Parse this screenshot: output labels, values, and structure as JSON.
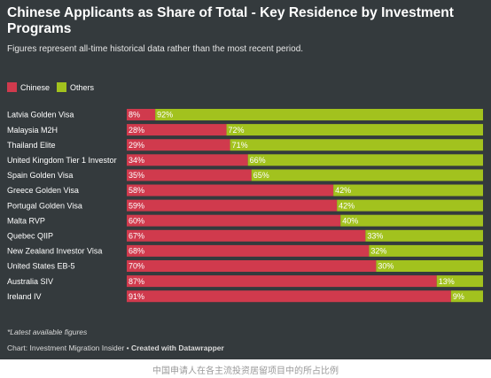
{
  "header": {
    "title": "Chinese Applicants as Share of Total - Key Residence by Investment Programs",
    "subtitle": "Figures represent all-time historical data rather than the most recent period."
  },
  "colors": {
    "chinese": "#d03a4d",
    "others": "#a2c21e",
    "background": "#343a3d"
  },
  "chart_data": {
    "type": "bar",
    "orientation": "horizontal",
    "stacked": true,
    "categories": [
      "Latvia Golden Visa",
      "Malaysia M2H",
      "Thailand Elite",
      "United Kingdom Tier 1 Investor",
      "Spain Golden Visa",
      "Greece Golden Visa",
      "Portugal Golden Visa",
      "Malta RVP",
      "Quebec QIIP",
      "New Zealand Investor Visa",
      "United States EB-5",
      "Australia SIV",
      "Ireland IV"
    ],
    "series": [
      {
        "name": "Chinese",
        "values": [
          8,
          28,
          29,
          34,
          35,
          58,
          59,
          60,
          67,
          68,
          70,
          87,
          91
        ]
      },
      {
        "name": "Others",
        "values": [
          92,
          72,
          71,
          66,
          65,
          42,
          42,
          40,
          33,
          32,
          30,
          13,
          9
        ]
      }
    ],
    "value_suffix": "%",
    "xlim": [
      0,
      100
    ],
    "legend": "top-left",
    "grid": false
  },
  "legend": [
    {
      "label": "Chinese"
    },
    {
      "label": "Others"
    }
  ],
  "footer": {
    "note": "*Latest available figures",
    "credit_prefix": "Chart: Investment Migration Insider • ",
    "credit_bold": "Created with Datawrapper"
  },
  "caption": "中国申请人在各主流投资居留项目中的所占比例"
}
